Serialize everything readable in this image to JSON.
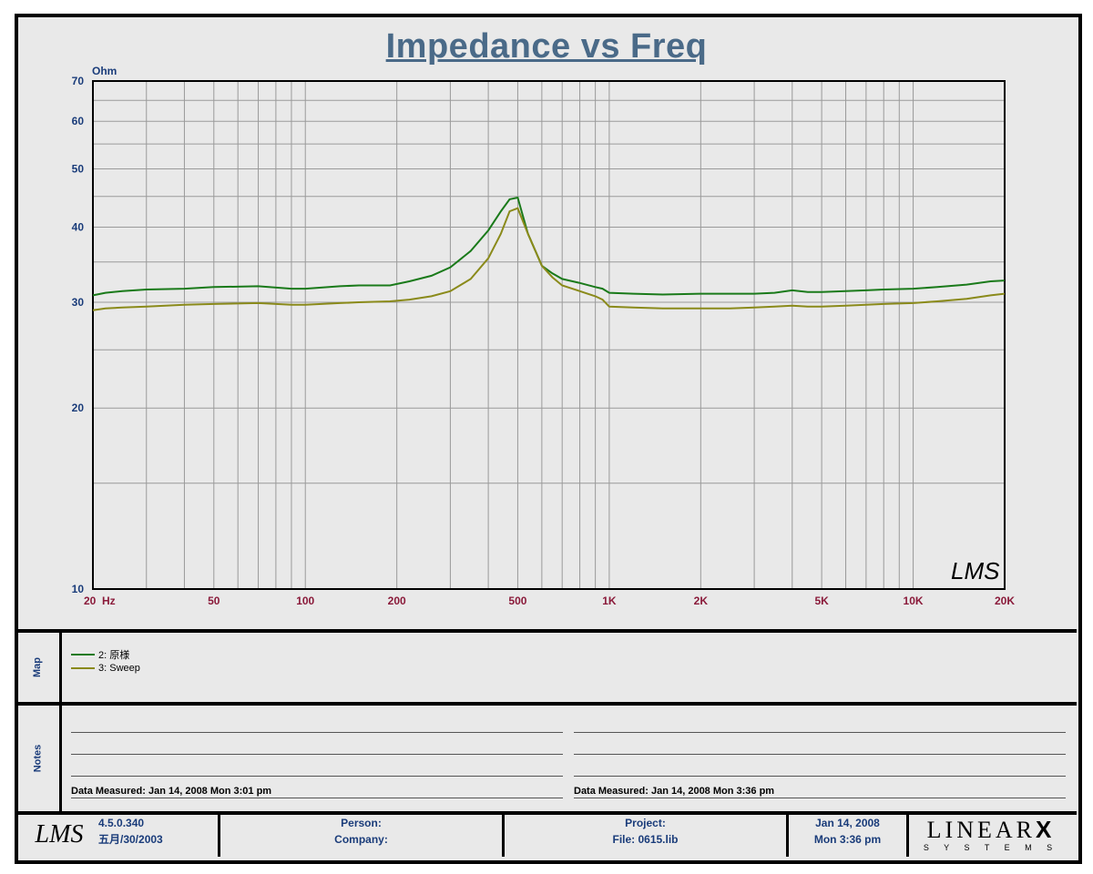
{
  "chart_title": "Impedance vs Freq",
  "chart_data": {
    "type": "line",
    "title": "Impedance vs Freq",
    "ylabel": "Ohm",
    "xlabel": "",
    "xscale": "log",
    "yscale": "log",
    "xlim": [
      20,
      20000
    ],
    "ylim": [
      10,
      70
    ],
    "grid": true,
    "x_ticks": [
      {
        "value": 20,
        "label": "20  Hz"
      },
      {
        "value": 50,
        "label": "50"
      },
      {
        "value": 100,
        "label": "100"
      },
      {
        "value": 200,
        "label": "200"
      },
      {
        "value": 500,
        "label": "500"
      },
      {
        "value": 1000,
        "label": "1K"
      },
      {
        "value": 2000,
        "label": "2K"
      },
      {
        "value": 5000,
        "label": "5K"
      },
      {
        "value": 10000,
        "label": "10K"
      },
      {
        "value": 20000,
        "label": "20K"
      }
    ],
    "y_ticks": [
      {
        "value": 10,
        "label": "10"
      },
      {
        "value": 20,
        "label": "20"
      },
      {
        "value": 30,
        "label": "30"
      },
      {
        "value": 40,
        "label": "40"
      },
      {
        "value": 50,
        "label": "50"
      },
      {
        "value": 60,
        "label": "60"
      },
      {
        "value": 70,
        "label": "70"
      }
    ],
    "series": [
      {
        "name": "2: 原様",
        "color": "#1a7a1a",
        "points": [
          [
            20,
            30.8
          ],
          [
            22,
            31.1
          ],
          [
            25,
            31.3
          ],
          [
            30,
            31.5
          ],
          [
            40,
            31.6
          ],
          [
            50,
            31.8
          ],
          [
            70,
            31.9
          ],
          [
            90,
            31.6
          ],
          [
            100,
            31.6
          ],
          [
            130,
            31.9
          ],
          [
            150,
            32.0
          ],
          [
            190,
            32.0
          ],
          [
            220,
            32.5
          ],
          [
            260,
            33.2
          ],
          [
            300,
            34.3
          ],
          [
            350,
            36.5
          ],
          [
            400,
            39.5
          ],
          [
            440,
            42.5
          ],
          [
            470,
            44.5
          ],
          [
            500,
            44.8
          ],
          [
            540,
            39.0
          ],
          [
            600,
            34.5
          ],
          [
            650,
            33.5
          ],
          [
            700,
            32.8
          ],
          [
            800,
            32.3
          ],
          [
            900,
            31.8
          ],
          [
            950,
            31.6
          ],
          [
            1000,
            31.1
          ],
          [
            1200,
            31.0
          ],
          [
            1500,
            30.9
          ],
          [
            2000,
            31.0
          ],
          [
            2500,
            31.0
          ],
          [
            3000,
            31.0
          ],
          [
            3500,
            31.1
          ],
          [
            4000,
            31.4
          ],
          [
            4500,
            31.2
          ],
          [
            5000,
            31.2
          ],
          [
            6000,
            31.3
          ],
          [
            7000,
            31.4
          ],
          [
            8000,
            31.5
          ],
          [
            10000,
            31.6
          ],
          [
            12000,
            31.8
          ],
          [
            15000,
            32.1
          ],
          [
            18000,
            32.5
          ],
          [
            20000,
            32.6
          ]
        ]
      },
      {
        "name": "3: Sweep",
        "color": "#8a8a1a",
        "points": [
          [
            20,
            29.1
          ],
          [
            22,
            29.3
          ],
          [
            25,
            29.4
          ],
          [
            30,
            29.5
          ],
          [
            40,
            29.7
          ],
          [
            50,
            29.8
          ],
          [
            70,
            29.9
          ],
          [
            90,
            29.7
          ],
          [
            100,
            29.7
          ],
          [
            130,
            29.9
          ],
          [
            150,
            30.0
          ],
          [
            190,
            30.1
          ],
          [
            220,
            30.3
          ],
          [
            260,
            30.7
          ],
          [
            300,
            31.3
          ],
          [
            350,
            32.8
          ],
          [
            400,
            35.5
          ],
          [
            440,
            39.0
          ],
          [
            470,
            42.5
          ],
          [
            500,
            43.0
          ],
          [
            540,
            39.0
          ],
          [
            600,
            34.5
          ],
          [
            650,
            33.0
          ],
          [
            700,
            32.0
          ],
          [
            800,
            31.3
          ],
          [
            900,
            30.7
          ],
          [
            950,
            30.3
          ],
          [
            1000,
            29.5
          ],
          [
            1200,
            29.4
          ],
          [
            1500,
            29.3
          ],
          [
            2000,
            29.3
          ],
          [
            2500,
            29.3
          ],
          [
            3000,
            29.4
          ],
          [
            3500,
            29.5
          ],
          [
            4000,
            29.6
          ],
          [
            4500,
            29.5
          ],
          [
            5000,
            29.5
          ],
          [
            6000,
            29.6
          ],
          [
            7000,
            29.7
          ],
          [
            8000,
            29.8
          ],
          [
            10000,
            29.9
          ],
          [
            12000,
            30.1
          ],
          [
            15000,
            30.4
          ],
          [
            18000,
            30.8
          ],
          [
            20000,
            31.0
          ]
        ]
      }
    ]
  },
  "watermark_logo": "LMS",
  "map": {
    "label": "Map",
    "entries": [
      {
        "label": "2: 原様",
        "color": "#1a7a1a"
      },
      {
        "label": "3: Sweep",
        "color": "#8a8a1a"
      }
    ]
  },
  "notes": {
    "label": "Notes",
    "left_measured": "Data Measured: Jan 14, 2008  Mon  3:01 pm",
    "right_measured": "Data Measured: Jan 14, 2008  Mon  3:36 pm"
  },
  "footer": {
    "logo": "LMS",
    "version": "4.5.0.340",
    "version_date": "五月/30/2003",
    "person_label": "Person:",
    "company_label": "Company:",
    "project_label": "Project:",
    "file_label": "File: 0615.lib",
    "date": "Jan 14, 2008",
    "day_time": "Mon  3:36 pm",
    "brand": "LINEAR",
    "brand_x": "X",
    "brand_sub": "S Y S T E M S"
  }
}
